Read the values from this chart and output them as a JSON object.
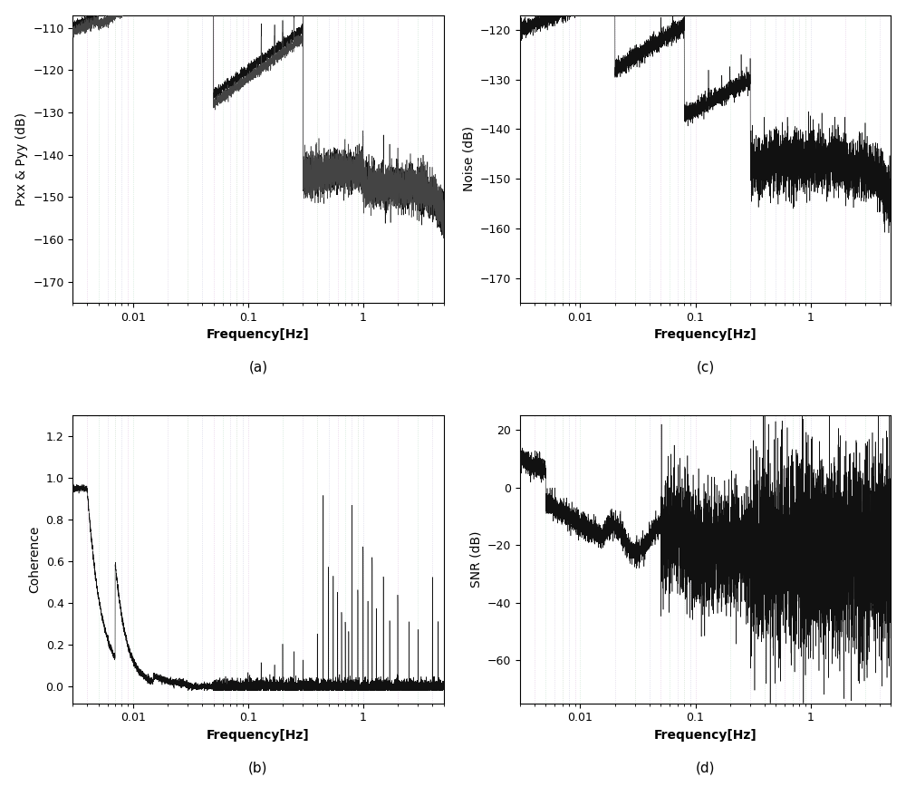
{
  "fig_width": 10.0,
  "fig_height": 8.68,
  "dpi": 100,
  "bg_color": "#ffffff",
  "freq_min": 0.003,
  "freq_max": 5.0,
  "plots": {
    "a": {
      "ylabel": "Pxx & Pyy (dB)",
      "xlabel": "Frequency[Hz]",
      "ylim": [
        -175,
        -107
      ],
      "yticks": [
        -170,
        -160,
        -150,
        -140,
        -130,
        -120,
        -110
      ],
      "label": "(a)"
    },
    "b": {
      "ylabel": "Coherence",
      "xlabel": "Frequency[Hz]",
      "ylim": [
        -0.08,
        1.3
      ],
      "yticks": [
        0.0,
        0.2,
        0.4,
        0.6,
        0.8,
        1.0,
        1.2
      ],
      "label": "(b)"
    },
    "c": {
      "ylabel": "Noise (dB)",
      "xlabel": "Frequency[Hz]",
      "ylim": [
        -175,
        -117
      ],
      "yticks": [
        -170,
        -160,
        -150,
        -140,
        -130,
        -120
      ],
      "label": "(c)"
    },
    "d": {
      "ylabel": "SNR (dB)",
      "xlabel": "Frequency[Hz]",
      "ylim": [
        -75,
        25
      ],
      "yticks": [
        -60,
        -40,
        -20,
        0,
        20
      ],
      "label": "(d)"
    }
  },
  "line_color": "#111111",
  "line_color2": "#444444",
  "vline_colors": [
    "#88aa88",
    "#aaaacc",
    "#ccaacc",
    "#aaccaa"
  ],
  "axis_label_fontsize": 10,
  "tick_fontsize": 9,
  "label_fontsize": 11
}
